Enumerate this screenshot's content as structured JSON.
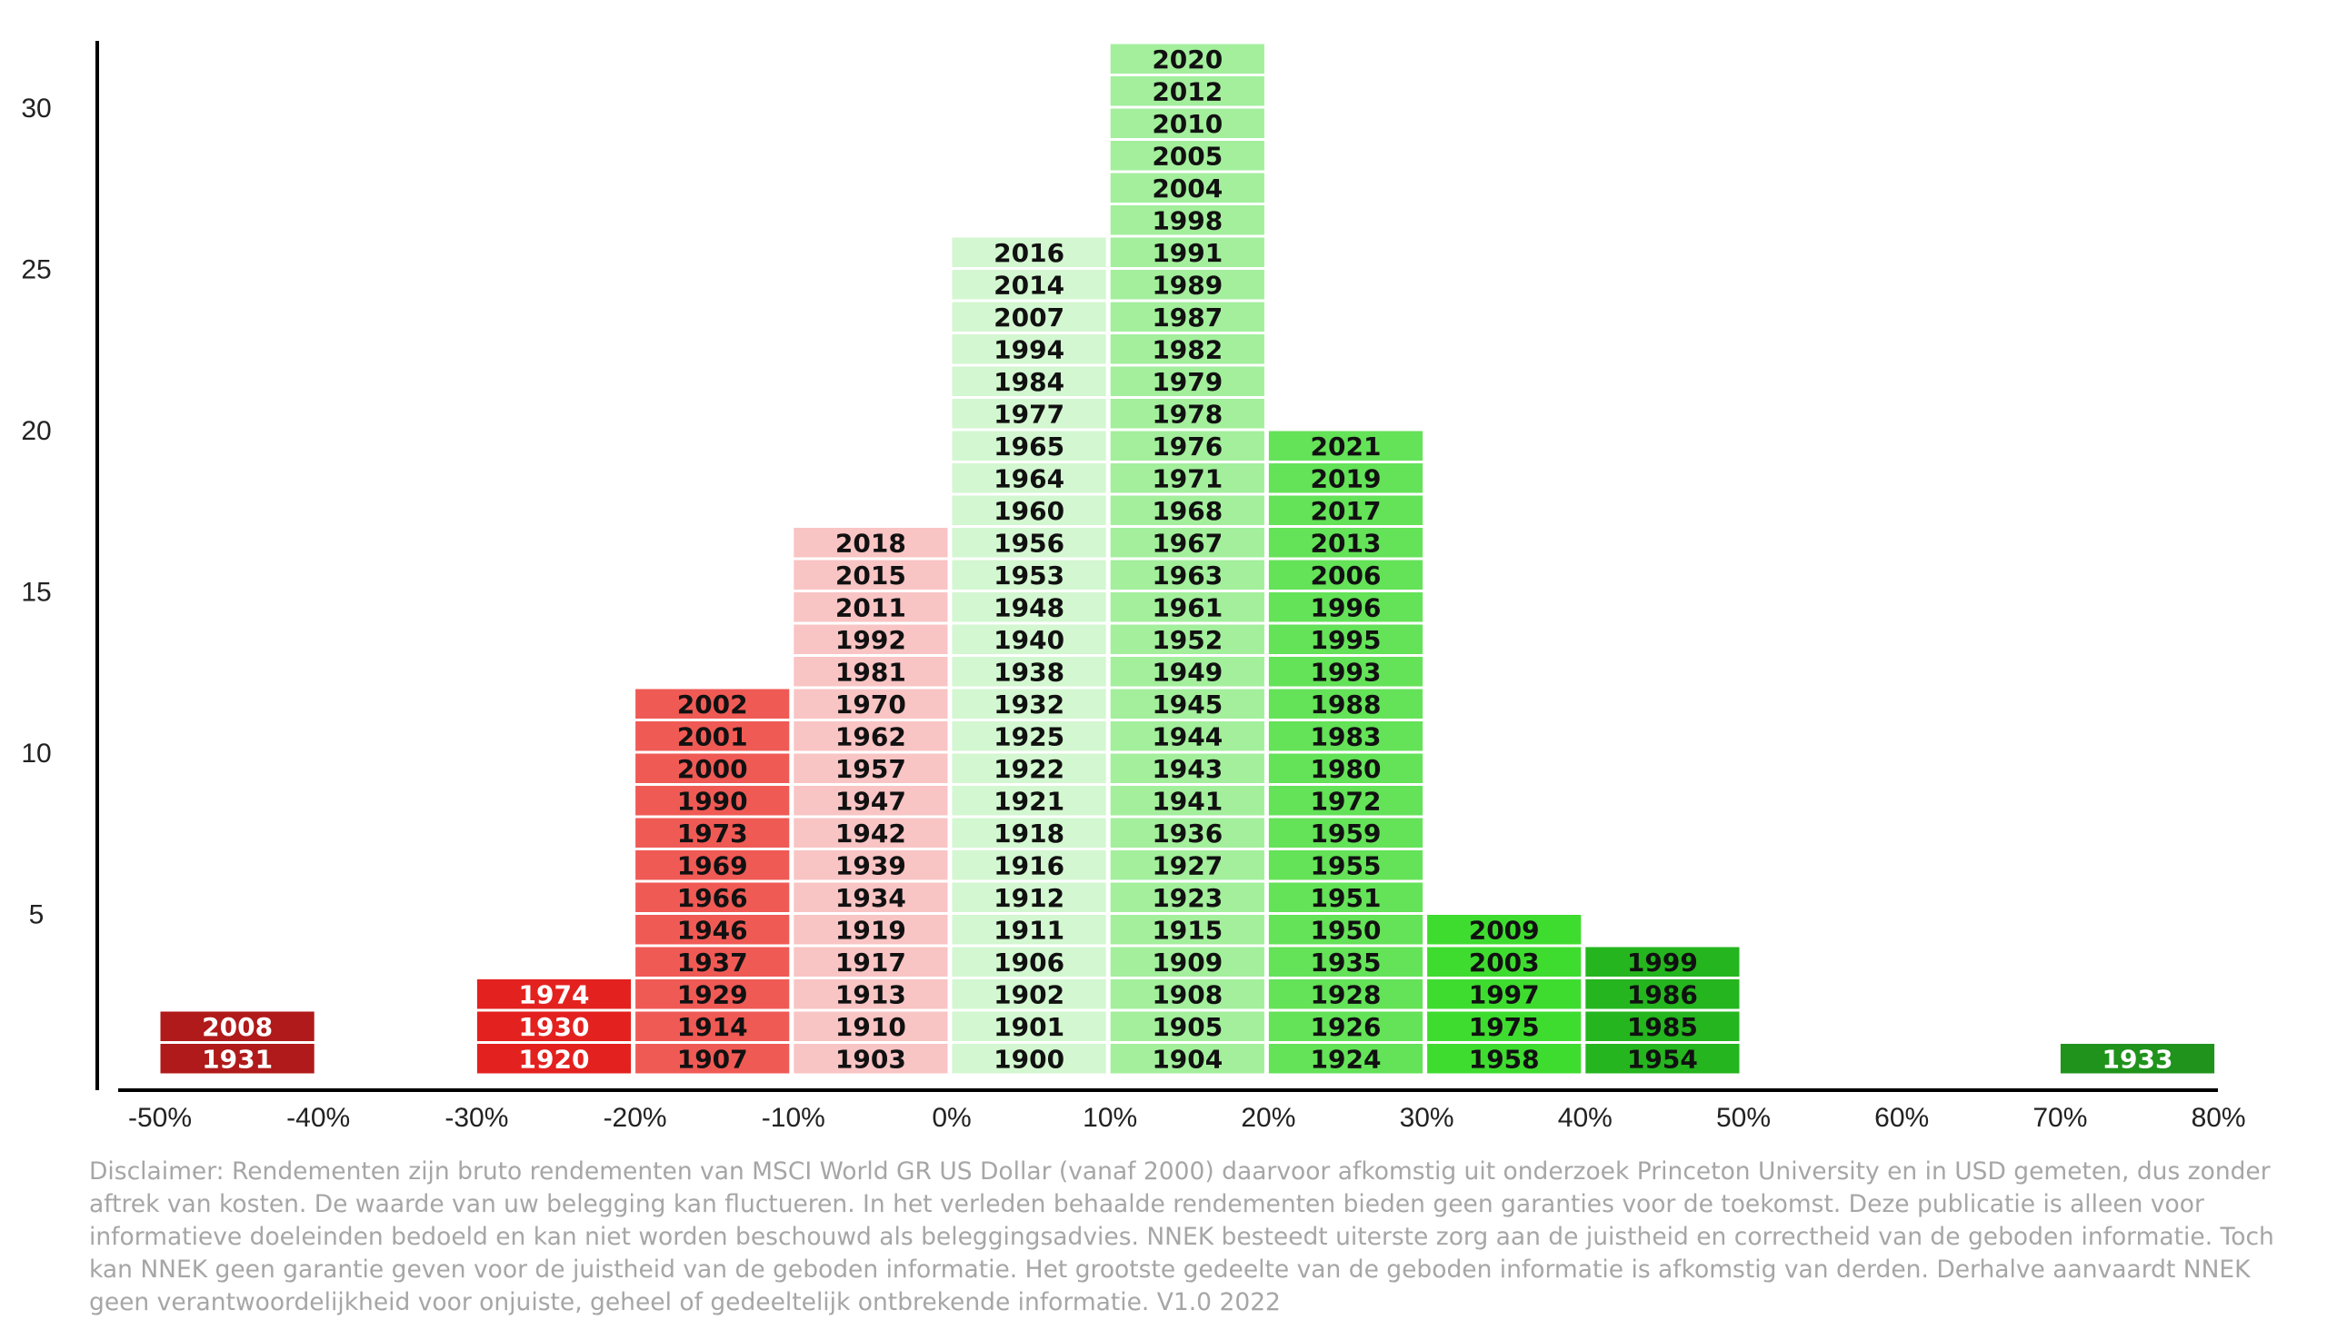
{
  "chart_data": {
    "type": "bar",
    "title": "",
    "xlabel": "",
    "ylabel": "",
    "stacked_labels": true,
    "ylim": [
      0,
      32
    ],
    "y_ticks": [
      5,
      10,
      15,
      20,
      25,
      30
    ],
    "x_ticks": [
      {
        "value": -50,
        "label": "-50%"
      },
      {
        "value": -40,
        "label": "-40%"
      },
      {
        "value": -30,
        "label": "-30%"
      },
      {
        "value": -20,
        "label": "-20%"
      },
      {
        "value": -10,
        "label": "-10%"
      },
      {
        "value": 0,
        "label": "0%"
      },
      {
        "value": 10,
        "label": "10%"
      },
      {
        "value": 20,
        "label": "20%"
      },
      {
        "value": 30,
        "label": "30%"
      },
      {
        "value": 40,
        "label": "40%"
      },
      {
        "value": 50,
        "label": "50%"
      },
      {
        "value": 60,
        "label": "60%"
      },
      {
        "value": 70,
        "label": "70%"
      },
      {
        "value": 80,
        "label": "80%"
      }
    ],
    "bins": [
      {
        "from": -50,
        "to": -40,
        "color": "#b01a1a",
        "text_color": "#ffffff",
        "count": 2,
        "years": [
          "1931",
          "2008"
        ]
      },
      {
        "from": -40,
        "to": -30,
        "color": "#c62828",
        "text_color": "#ffffff",
        "count": 0,
        "years": []
      },
      {
        "from": -30,
        "to": -20,
        "color": "#e3211f",
        "text_color": "#ffffff",
        "count": 3,
        "years": [
          "1920",
          "1930",
          "1974"
        ]
      },
      {
        "from": -20,
        "to": -10,
        "color": "#f05a55",
        "text_color": "#111111",
        "count": 12,
        "years": [
          "1907",
          "1914",
          "1929",
          "1937",
          "1946",
          "1966",
          "1969",
          "1973",
          "1990",
          "2000",
          "2001",
          "2002"
        ]
      },
      {
        "from": -10,
        "to": 0,
        "color": "#f9c4c4",
        "text_color": "#111111",
        "count": 17,
        "years": [
          "1903",
          "1910",
          "1913",
          "1917",
          "1919",
          "1934",
          "1939",
          "1942",
          "1947",
          "1957",
          "1962",
          "1970",
          "1981",
          "1992",
          "2011",
          "2015",
          "2018"
        ]
      },
      {
        "from": 0,
        "to": 10,
        "color": "#d3f7d0",
        "text_color": "#111111",
        "count": 26,
        "years": [
          "1900",
          "1901",
          "1902",
          "1906",
          "1911",
          "1912",
          "1916",
          "1918",
          "1921",
          "1922",
          "1925",
          "1932",
          "1938",
          "1940",
          "1948",
          "1953",
          "1956",
          "1960",
          "1964",
          "1965",
          "1977",
          "1984",
          "1994",
          "2007",
          "2014",
          "2016"
        ]
      },
      {
        "from": 10,
        "to": 20,
        "color": "#a3ef9c",
        "text_color": "#111111",
        "count": 32,
        "years": [
          "1904",
          "1905",
          "1908",
          "1909",
          "1915",
          "1923",
          "1927",
          "1936",
          "1941",
          "1943",
          "1944",
          "1945",
          "1949",
          "1952",
          "1961",
          "1963",
          "1967",
          "1968",
          "1971",
          "1976",
          "1978",
          "1979",
          "1982",
          "1987",
          "1989",
          "1991",
          "1998",
          "2004",
          "2005",
          "2010",
          "2012",
          "2020"
        ]
      },
      {
        "from": 20,
        "to": 30,
        "color": "#64e258",
        "text_color": "#111111",
        "count": 20,
        "years": [
          "1924",
          "1926",
          "1928",
          "1935",
          "1950",
          "1951",
          "1955",
          "1959",
          "1972",
          "1980",
          "1983",
          "1988",
          "1993",
          "1995",
          "1996",
          "2006",
          "2013",
          "2017",
          "2019",
          "2021"
        ]
      },
      {
        "from": 30,
        "to": 40,
        "color": "#3fdc30",
        "text_color": "#111111",
        "count": 5,
        "years": [
          "1958",
          "1975",
          "1997",
          "2003",
          "2009"
        ]
      },
      {
        "from": 40,
        "to": 50,
        "color": "#25b51f",
        "text_color": "#111111",
        "count": 4,
        "years": [
          "1954",
          "1985",
          "1986",
          "1999"
        ]
      },
      {
        "from": 50,
        "to": 60,
        "color": "#1e9a1a",
        "text_color": "#ffffff",
        "count": 0,
        "years": []
      },
      {
        "from": 60,
        "to": 70,
        "color": "#1e9a1a",
        "text_color": "#ffffff",
        "count": 0,
        "years": []
      },
      {
        "from": 70,
        "to": 80,
        "color": "#1f931b",
        "text_color": "#ffffff",
        "count": 1,
        "years": [
          "1933"
        ]
      }
    ]
  },
  "disclaimer": "Disclaimer: Rendementen zijn bruto rendementen van MSCI World GR US Dollar (vanaf 2000) daarvoor afkomstig uit onderzoek Princeton University en in USD gemeten, dus zonder aftrek van kosten. De waarde van uw belegging kan fluctueren. In het verleden behaalde rendementen bieden geen garanties voor de toekomst. Deze publicatie is alleen voor informatieve doeleinden bedoeld en kan niet worden beschouwd als beleggingsadvies. NNEK besteedt uiterste zorg aan de juistheid en correctheid van de geboden informatie. Toch kan NNEK geen garantie geven voor de juistheid van de geboden informatie. Het grootste gedeelte van de geboden informatie is afkomstig van derden. Derhalve aanvaardt NNEK geen verantwoordelijkheid voor onjuiste, geheel of gedeeltelijk ontbrekende informatie. V1.0 2022"
}
